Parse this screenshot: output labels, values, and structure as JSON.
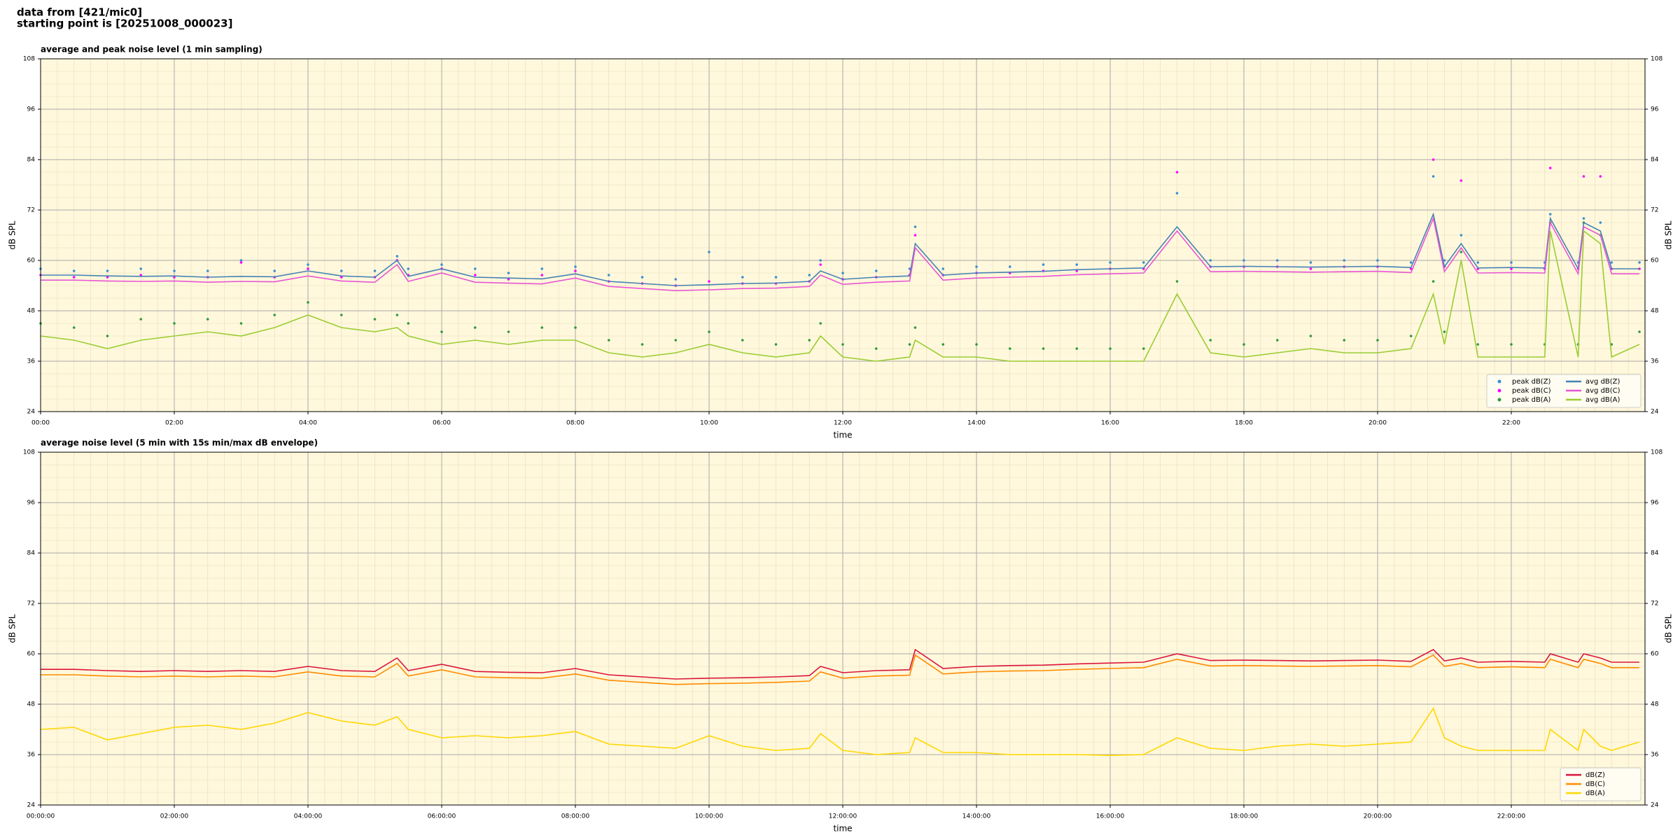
{
  "header": {
    "line1": "data from [421/mic0]",
    "line2": "starting point is [20251008_000023]"
  },
  "chart_data": [
    {
      "type": "line",
      "title": "average and peak noise level (1 min sampling)",
      "xlabel": "time",
      "ylabel": "dB SPL",
      "xlim": [
        "00:00",
        "24:00"
      ],
      "xticks": [
        "00:00",
        "02:00",
        "04:00",
        "06:00",
        "08:00",
        "10:00",
        "12:00",
        "14:00",
        "16:00",
        "18:00",
        "20:00",
        "22:00"
      ],
      "ylim": [
        24,
        108
      ],
      "yticks": [
        24,
        36,
        48,
        60,
        72,
        84,
        96,
        108
      ],
      "grid": true,
      "legend": "lower right",
      "legend_columns": 2,
      "x": [
        "00:00",
        "00:30",
        "01:00",
        "01:30",
        "02:00",
        "02:30",
        "03:00",
        "03:30",
        "04:00",
        "04:30",
        "05:00",
        "05:20",
        "05:30",
        "06:00",
        "06:30",
        "07:00",
        "07:30",
        "08:00",
        "08:30",
        "09:00",
        "09:30",
        "10:00",
        "10:30",
        "11:00",
        "11:30",
        "11:40",
        "12:00",
        "12:30",
        "13:00",
        "13:05",
        "13:30",
        "14:00",
        "14:30",
        "15:00",
        "15:30",
        "16:00",
        "16:30",
        "17:00",
        "17:30",
        "18:00",
        "18:30",
        "19:00",
        "19:30",
        "20:00",
        "20:30",
        "20:50",
        "21:00",
        "21:15",
        "21:30",
        "22:00",
        "22:30",
        "22:35",
        "23:00",
        "23:05",
        "23:20",
        "23:30",
        "23:55"
      ],
      "series": [
        {
          "name": "peak dB(Z)",
          "kind": "scatter",
          "color": "#3a8fd0",
          "values": [
            58,
            57.5,
            57.5,
            58,
            57.5,
            57.5,
            60,
            57.5,
            59,
            57.5,
            57.5,
            61,
            58,
            59,
            58,
            57,
            58,
            58.5,
            56.5,
            56,
            55.5,
            62,
            56,
            56,
            56.5,
            60,
            57,
            57.5,
            58,
            68,
            58,
            58.5,
            58.5,
            59,
            59,
            59.5,
            59.5,
            76,
            60,
            60,
            60,
            59.5,
            60,
            60,
            59.5,
            80,
            60,
            66,
            59.5,
            59.5,
            59.5,
            71,
            59.5,
            70,
            69,
            59.5,
            59.5
          ]
        },
        {
          "name": "peak dB(C)",
          "kind": "scatter",
          "color": "#ff00ff",
          "values": [
            56.5,
            56,
            56,
            56.5,
            56,
            56,
            59.5,
            56,
            58,
            56,
            56,
            60,
            56.5,
            58,
            56.5,
            55.5,
            56.5,
            57.5,
            55,
            54.5,
            54,
            55,
            54.5,
            54.5,
            55,
            59,
            55.5,
            56,
            56.5,
            66,
            56.5,
            57,
            57,
            57.5,
            57.5,
            58,
            58,
            81,
            58.5,
            58.5,
            58.5,
            58,
            58.5,
            58.5,
            58,
            84,
            58.5,
            79,
            58,
            58,
            58,
            82,
            58,
            80,
            80,
            58,
            58
          ]
        },
        {
          "name": "peak dB(A)",
          "kind": "scatter",
          "color": "#2e9a3c",
          "values": [
            45,
            44,
            42,
            46,
            45,
            46,
            45,
            47,
            50,
            47,
            46,
            47,
            45,
            43,
            44,
            43,
            44,
            44,
            41,
            40,
            41,
            43,
            41,
            40,
            41,
            45,
            40,
            39,
            40,
            44,
            40,
            40,
            39,
            39,
            39,
            39,
            39,
            55,
            41,
            40,
            41,
            42,
            41,
            41,
            42,
            55,
            43,
            62,
            40,
            40,
            40,
            69,
            40,
            69,
            66,
            40,
            43
          ]
        },
        {
          "name": "avg dB(Z)",
          "kind": "line",
          "color": "#4682b4",
          "values": [
            56.5,
            56.5,
            56.3,
            56.2,
            56.3,
            56.0,
            56.2,
            56.1,
            57.5,
            56.3,
            56.0,
            60.0,
            56.2,
            58.0,
            56.0,
            55.8,
            55.6,
            56.8,
            55.0,
            54.5,
            54.0,
            54.2,
            54.5,
            54.6,
            55.0,
            57.5,
            55.5,
            56.0,
            56.3,
            64.0,
            56.5,
            57.0,
            57.2,
            57.4,
            57.8,
            58.0,
            58.2,
            68.0,
            58.5,
            58.6,
            58.5,
            58.4,
            58.5,
            58.6,
            58.3,
            71.0,
            58.5,
            64.0,
            58.2,
            58.3,
            58.2,
            70.0,
            58.0,
            69.0,
            67.0,
            58.0,
            58.0
          ]
        },
        {
          "name": "avg dB(C)",
          "kind": "line",
          "color": "#e855d4",
          "values": [
            55.3,
            55.3,
            55.1,
            55.0,
            55.1,
            54.8,
            55.0,
            54.9,
            56.3,
            55.1,
            54.8,
            59.0,
            55.0,
            57.0,
            54.8,
            54.6,
            54.4,
            55.8,
            53.8,
            53.3,
            52.8,
            53.0,
            53.3,
            53.4,
            53.8,
            56.5,
            54.3,
            54.8,
            55.1,
            63.0,
            55.3,
            55.8,
            56.0,
            56.2,
            56.6,
            56.8,
            57.0,
            67.0,
            57.3,
            57.4,
            57.3,
            57.2,
            57.3,
            57.4,
            57.1,
            70.0,
            57.3,
            63.0,
            57.0,
            57.1,
            57.0,
            69.0,
            56.8,
            68.0,
            66.0,
            56.8,
            56.8
          ]
        },
        {
          "name": "avg dB(A)",
          "kind": "line",
          "color": "#9acd32",
          "values": [
            42,
            41,
            39,
            41,
            42,
            43,
            42,
            44,
            47,
            44,
            43,
            44,
            42,
            40,
            41,
            40,
            41,
            41,
            38,
            37,
            38,
            40,
            38,
            37,
            38,
            42,
            37,
            36,
            37,
            41,
            37,
            37,
            36,
            36,
            36,
            36,
            36,
            52,
            38,
            37,
            38,
            39,
            38,
            38,
            39,
            52,
            40,
            60,
            37,
            37,
            37,
            67,
            37,
            67,
            64,
            37,
            40
          ]
        }
      ]
    },
    {
      "type": "line",
      "title": "average noise level (5 min with 15s min/max dB envelope)",
      "xlabel": "time",
      "ylabel": "dB SPL",
      "xlim": [
        "00:00:00",
        "24:00:00"
      ],
      "xticks": [
        "00:00:00",
        "02:00:00",
        "04:00:00",
        "06:00:00",
        "08:00:00",
        "10:00:00",
        "12:00:00",
        "14:00:00",
        "16:00:00",
        "18:00:00",
        "20:00:00",
        "22:00:00"
      ],
      "ylim": [
        24,
        108
      ],
      "yticks": [
        24,
        36,
        48,
        60,
        72,
        84,
        96,
        108
      ],
      "grid": true,
      "legend": "lower right",
      "legend_columns": 1,
      "x": [
        "00:00:00",
        "00:30:00",
        "01:00:00",
        "01:30:00",
        "02:00:00",
        "02:30:00",
        "03:00:00",
        "03:30:00",
        "04:00:00",
        "04:30:00",
        "05:00:00",
        "05:20:00",
        "05:30:00",
        "06:00:00",
        "06:30:00",
        "07:00:00",
        "07:30:00",
        "08:00:00",
        "08:30:00",
        "09:00:00",
        "09:30:00",
        "10:00:00",
        "10:30:00",
        "11:00:00",
        "11:30:00",
        "11:40:00",
        "12:00:00",
        "12:30:00",
        "13:00:00",
        "13:05:00",
        "13:30:00",
        "14:00:00",
        "14:30:00",
        "15:00:00",
        "15:30:00",
        "16:00:00",
        "16:30:00",
        "17:00:00",
        "17:30:00",
        "18:00:00",
        "18:30:00",
        "19:00:00",
        "19:30:00",
        "20:00:00",
        "20:30:00",
        "20:50:00",
        "21:00:00",
        "21:15:00",
        "21:30:00",
        "22:00:00",
        "22:30:00",
        "22:35:00",
        "23:00:00",
        "23:05:00",
        "23:20:00",
        "23:30:00",
        "23:55:00"
      ],
      "series": [
        {
          "name": "dB(Z)",
          "kind": "line",
          "color": "#dc143c",
          "values": [
            56.3,
            56.3,
            56.0,
            55.8,
            56.0,
            55.8,
            56.0,
            55.8,
            57.0,
            56.0,
            55.8,
            59.0,
            56.0,
            57.5,
            55.8,
            55.6,
            55.5,
            56.5,
            55.0,
            54.5,
            54.0,
            54.2,
            54.3,
            54.5,
            54.8,
            57.0,
            55.5,
            56.0,
            56.2,
            61.0,
            56.5,
            57.0,
            57.2,
            57.3,
            57.6,
            57.8,
            58.0,
            60.0,
            58.4,
            58.5,
            58.4,
            58.3,
            58.4,
            58.5,
            58.2,
            61.0,
            58.3,
            59.0,
            58.0,
            58.2,
            58.0,
            60.0,
            58.0,
            60.0,
            59.0,
            58.0,
            58.0
          ]
        },
        {
          "name": "dB(C)",
          "kind": "line",
          "color": "#ff8c00",
          "values": [
            55.0,
            55.0,
            54.7,
            54.5,
            54.7,
            54.5,
            54.7,
            54.5,
            55.7,
            54.7,
            54.5,
            57.7,
            54.7,
            56.2,
            54.5,
            54.3,
            54.2,
            55.2,
            53.7,
            53.2,
            52.7,
            52.9,
            53.0,
            53.2,
            53.5,
            55.7,
            54.2,
            54.7,
            54.9,
            59.7,
            55.2,
            55.7,
            55.9,
            56.0,
            56.3,
            56.5,
            56.7,
            58.7,
            57.1,
            57.2,
            57.1,
            57.0,
            57.1,
            57.2,
            56.9,
            59.7,
            57.0,
            57.7,
            56.7,
            56.9,
            56.7,
            58.7,
            56.7,
            58.7,
            57.7,
            56.7,
            56.7
          ]
        },
        {
          "name": "dB(A)",
          "kind": "line",
          "color": "#ffd700",
          "values": [
            42,
            42.5,
            39.5,
            41,
            42.5,
            43,
            42,
            43.5,
            46,
            44,
            43,
            45,
            42,
            40,
            40.5,
            40,
            40.5,
            41.5,
            38.5,
            38,
            37.5,
            40.5,
            38,
            37,
            37.5,
            41,
            37,
            36,
            36.5,
            40,
            36.5,
            36.5,
            36,
            36,
            36,
            35.8,
            36,
            40,
            37.5,
            37,
            38,
            38.5,
            38,
            38.5,
            39,
            47,
            40,
            38,
            37,
            37,
            37,
            42,
            37,
            42,
            38,
            37,
            39
          ]
        }
      ]
    }
  ]
}
